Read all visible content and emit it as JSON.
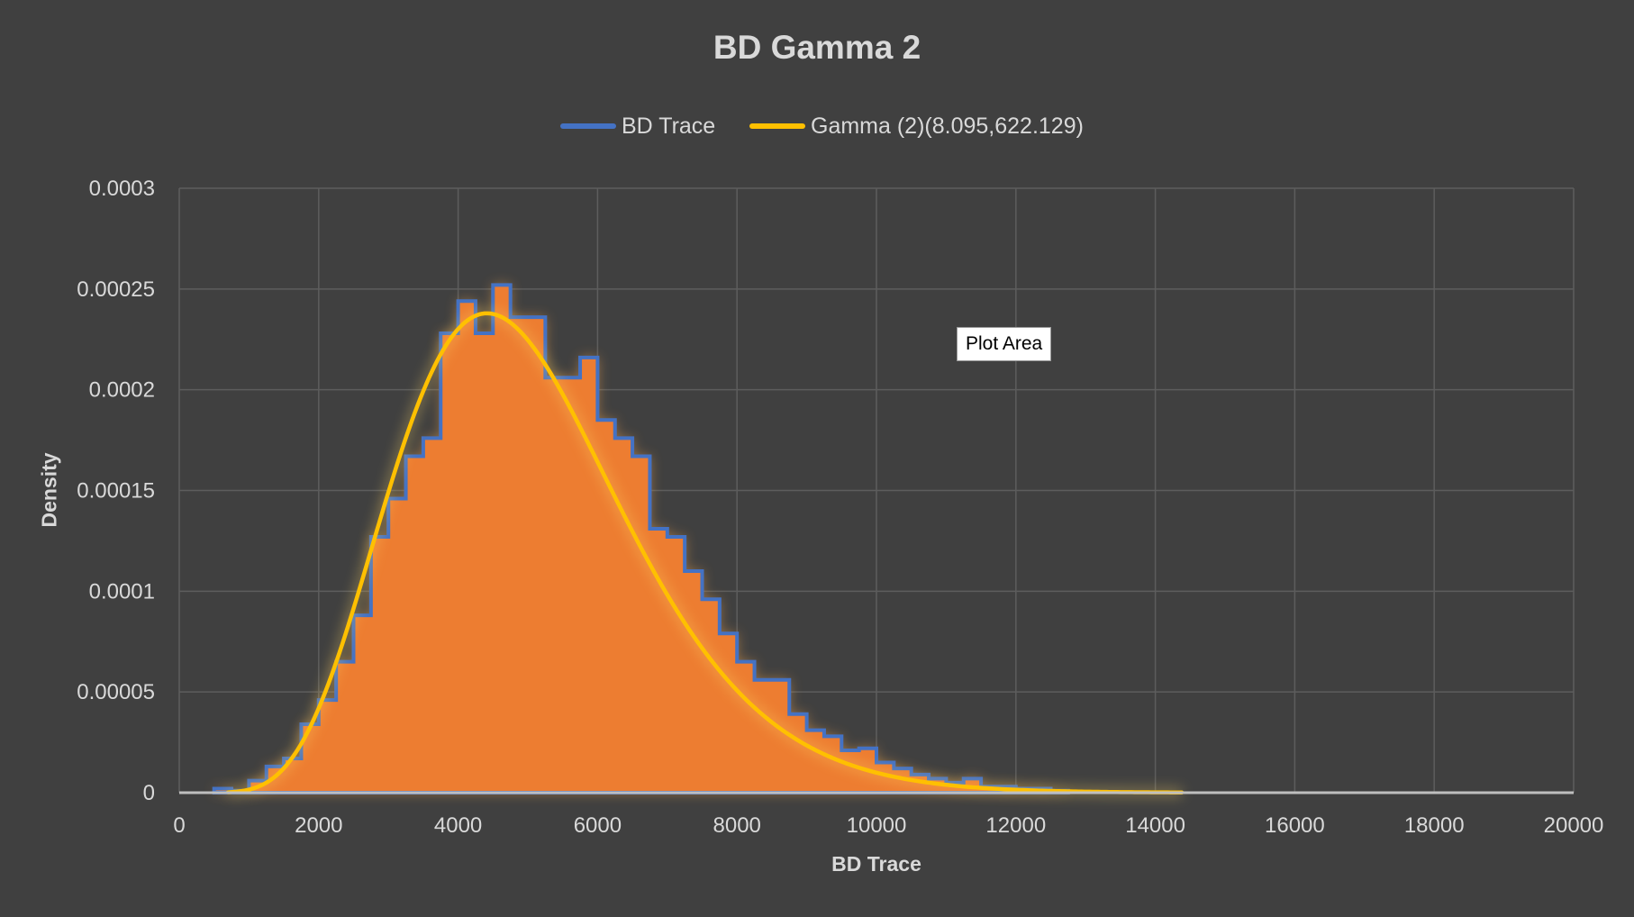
{
  "chart_data": {
    "type": "bar",
    "title": "BD Gamma 2",
    "xlabel": "BD Trace",
    "ylabel": "Density",
    "xlim": [
      0,
      20000
    ],
    "ylim": [
      0,
      0.0003
    ],
    "grid": true,
    "legend_position": "top",
    "x_ticks": [
      "0",
      "2000",
      "4000",
      "6000",
      "8000",
      "10000",
      "12000",
      "14000",
      "16000",
      "18000",
      "20000"
    ],
    "y_ticks": [
      "0",
      "0.00005",
      "0.0001",
      "0.00015",
      "0.0002",
      "0.00025",
      "0.0003"
    ],
    "series": [
      {
        "name": "BD Trace",
        "kind": "histogram",
        "color": "#4472c4",
        "fill_color": "#ed7d31",
        "bin_width": 250,
        "bin_starts": [
          500,
          750,
          1000,
          1250,
          1500,
          1750,
          2000,
          2250,
          2500,
          2750,
          3000,
          3250,
          3500,
          3750,
          4000,
          4250,
          4500,
          4750,
          5000,
          5250,
          5500,
          5750,
          6000,
          6250,
          6500,
          6750,
          7000,
          7250,
          7500,
          7750,
          8000,
          8250,
          8500,
          8750,
          9000,
          9250,
          9500,
          9750,
          10000,
          10250,
          10500,
          10750,
          11000,
          11250,
          11500,
          11750,
          12000,
          12250,
          12500
        ],
        "values": [
          2e-06,
          1e-06,
          6e-06,
          1.3e-05,
          1.7e-05,
          3.4e-05,
          4.6e-05,
          6.5e-05,
          8.8e-05,
          0.000127,
          0.000146,
          0.000167,
          0.000176,
          0.000228,
          0.000244,
          0.000228,
          0.000252,
          0.000236,
          0.000236,
          0.000206,
          0.000206,
          0.000216,
          0.000185,
          0.000176,
          0.000167,
          0.000131,
          0.000127,
          0.00011,
          9.6e-05,
          7.9e-05,
          6.5e-05,
          5.6e-05,
          5.6e-05,
          3.9e-05,
          3.1e-05,
          2.8e-05,
          2.1e-05,
          2.2e-05,
          1.5e-05,
          1.2e-05,
          9e-06,
          7e-06,
          5e-06,
          7e-06,
          3e-06,
          3e-06,
          2e-06,
          2e-06,
          1e-06
        ]
      },
      {
        "name": "Gamma (2)(8.095,622.129)",
        "kind": "line",
        "color": "#ffc000",
        "shape": 8.095,
        "scale": 622.129,
        "x_start": 700,
        "x_end": 14400
      }
    ]
  },
  "tooltip": {
    "text": "Plot Area"
  }
}
